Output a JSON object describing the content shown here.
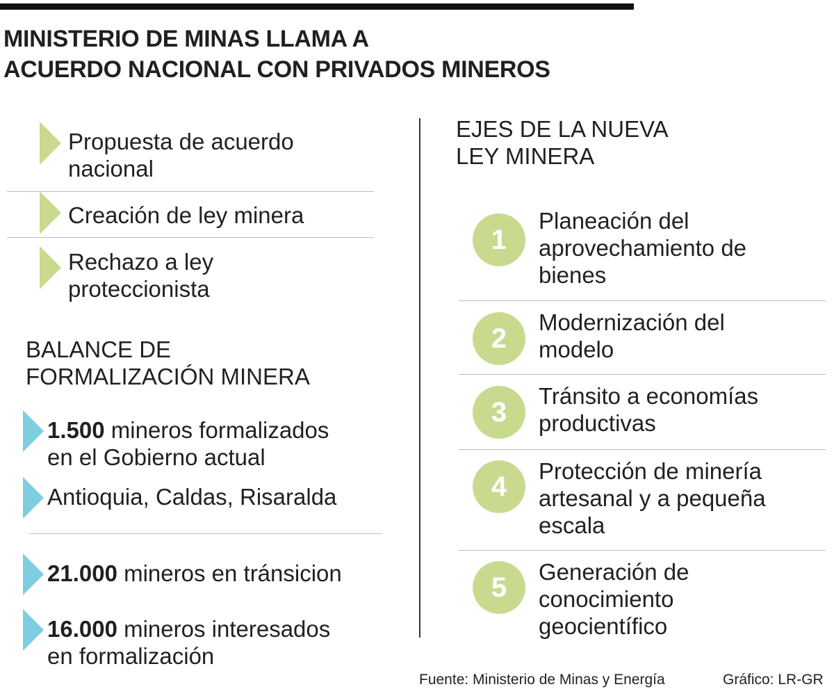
{
  "header": {
    "title_lines": [
      "MINISTERIO DE MINAS LLAMA A",
      "ACUERDO NACIONAL CON PRIVADOS MINEROS"
    ]
  },
  "proposals": [
    {
      "lines": [
        "Propuesta de acuerdo",
        "nacional"
      ]
    },
    {
      "lines": [
        "Creación de ley minera"
      ]
    },
    {
      "lines": [
        "Rechazo a ley",
        "proteccionista"
      ]
    }
  ],
  "balance": {
    "heading_lines": [
      "BALANCE DE",
      "FORMALIZACIÓN MINERA"
    ],
    "items": [
      {
        "number": "1.500",
        "lines": [
          "mineros formalizados",
          "en el Gobierno actual"
        ]
      },
      {
        "lines": [
          "Antioquia, Caldas, Risaralda"
        ]
      },
      {
        "number": "21.000",
        "lines": [
          "mineros en tránsicion"
        ]
      },
      {
        "number": "16.000",
        "lines": [
          "mineros interesados",
          "en formalización"
        ]
      }
    ]
  },
  "axes": {
    "heading_lines": [
      "EJES DE LA NUEVA",
      "LEY MINERA"
    ],
    "items": [
      {
        "number": "1",
        "lines": [
          "Planeación del",
          "aprovechamiento de",
          "bienes"
        ]
      },
      {
        "number": "2",
        "lines": [
          "Modernización del",
          "modelo"
        ]
      },
      {
        "number": "3",
        "lines": [
          "Tránsito a economías",
          "productivas"
        ]
      },
      {
        "number": "4",
        "lines": [
          "Protección de minería",
          "artesanal y a pequeña",
          "escala"
        ]
      },
      {
        "number": "5",
        "lines": [
          "Generación de",
          "conocimiento",
          "geocientífico"
        ]
      }
    ]
  },
  "footer": {
    "source": "Fuente: Ministerio de Minas y Energía",
    "credit": "Gráfico: LR-GR"
  }
}
